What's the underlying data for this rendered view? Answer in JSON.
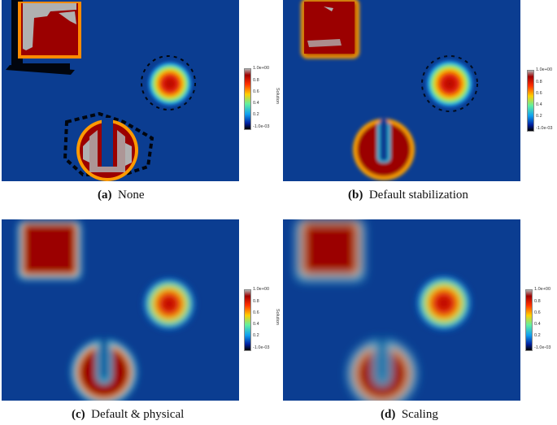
{
  "colorbar": {
    "title": "Solution",
    "max_label": "1.0e+00",
    "ticks": [
      "0.8",
      "0.6",
      "0.4",
      "0.2"
    ],
    "min_label": "-1.0e-03"
  },
  "panels": [
    {
      "letter": "(a)",
      "caption": "None"
    },
    {
      "letter": "(b)",
      "caption": "Default stabilization"
    },
    {
      "letter": "(c)",
      "caption": "Default & physical"
    },
    {
      "letter": "(d)",
      "caption": "Scaling"
    }
  ],
  "colors": {
    "background": "#0b3d91",
    "peak": "#8b0000",
    "overshoot": "#b0b0b0",
    "undershoot": "#000000"
  }
}
